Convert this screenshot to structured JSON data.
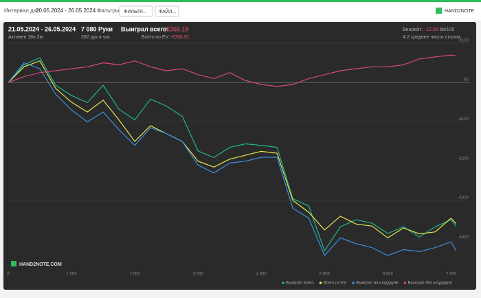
{
  "header": {
    "date_label": "Интервал дат:",
    "date_range": "20.05.2024 - 26.05.2024",
    "filters_label": "Фильтры:",
    "filter_button": "ФИЛЬТР...",
    "file_button": "ФАЙЛ...",
    "logo": "HAND2NOTE"
  },
  "stats": {
    "period": "21.05.2024 - 26.05.2024",
    "active": "Активен 18ч 2м",
    "hands": "7 080 Руки",
    "rate": "392 рук в час",
    "won_label": "Выиграл всего:",
    "won_value": "-€366.18",
    "ev_label": "Всего по EV:",
    "ev_value": "-€358.91",
    "winrate_label": "Винрейт:",
    "winrate_value": "-12.98",
    "winrate_unit": "bb/100",
    "tables": "4.2 среднее число столов"
  },
  "watermark": "HAND2NOTE.COM",
  "chart_data": {
    "type": "line",
    "x": [
      0,
      250,
      500,
      750,
      1000,
      1250,
      1500,
      1750,
      2000,
      2250,
      2500,
      2750,
      3000,
      3250,
      3500,
      3750,
      4000,
      4250,
      4500,
      4750,
      5000,
      5250,
      5500,
      5750,
      6000,
      6250,
      6500,
      6750,
      7000,
      7080
    ],
    "series": [
      {
        "name": "Выиграл всего",
        "color": "#1fb88c",
        "values": [
          0,
          45,
          63,
          -7,
          -33,
          -51,
          -7,
          -68,
          -95,
          -42,
          -60,
          -86,
          -174,
          -191,
          -165,
          -156,
          -160,
          -165,
          -296,
          -314,
          -428,
          -367,
          -349,
          -358,
          -384,
          -367,
          -393,
          -367,
          -349,
          -366
        ]
      },
      {
        "name": "Всего по EV",
        "color": "#e6e650",
        "values": [
          0,
          40,
          55,
          -15,
          -50,
          -75,
          -45,
          -95,
          -150,
          -110,
          -130,
          -150,
          -200,
          -215,
          -195,
          -185,
          -175,
          -180,
          -300,
          -330,
          -375,
          -340,
          -360,
          -365,
          -395,
          -370,
          -385,
          -380,
          -345,
          -359
        ]
      },
      {
        "name": "Выиграл на шоудауне",
        "color": "#3d8fe0",
        "values": [
          0,
          50,
          35,
          -30,
          -70,
          -100,
          -75,
          -120,
          -160,
          -115,
          -130,
          -150,
          -210,
          -230,
          -205,
          -200,
          -190,
          -190,
          -320,
          -345,
          -440,
          -395,
          -410,
          -420,
          -440,
          -425,
          -430,
          -420,
          -405,
          -428
        ]
      },
      {
        "name": "Выиграл без шоудауна",
        "color": "#d94a7c",
        "values": [
          0,
          15,
          25,
          30,
          35,
          40,
          50,
          45,
          55,
          40,
          30,
          35,
          20,
          10,
          25,
          5,
          -5,
          -10,
          -5,
          10,
          20,
          30,
          35,
          40,
          40,
          45,
          60,
          65,
          70,
          68
        ]
      }
    ],
    "xlim": [
      0,
      7300
    ],
    "ylim": [
      -480,
      140
    ],
    "xticks": [
      0,
      {
        "value": 1000,
        "label": "1 000"
      },
      {
        "value": 2000,
        "label": "2 000"
      },
      {
        "value": 3000,
        "label": "3 000"
      },
      {
        "value": 4000,
        "label": "4 000"
      },
      {
        "value": 5000,
        "label": "5 000"
      },
      {
        "value": 6000,
        "label": "6 000"
      },
      {
        "value": 7000,
        "label": "7 000"
      }
    ],
    "yticks": [
      {
        "value": 100,
        "label": "€100"
      },
      {
        "value": 0,
        "label": "€0"
      },
      {
        "value": -100,
        "label": "-€100"
      },
      {
        "value": -200,
        "label": "-€200"
      },
      {
        "value": -300,
        "label": "-€300"
      },
      {
        "value": -400,
        "label": "-€400"
      }
    ],
    "grid": true
  }
}
